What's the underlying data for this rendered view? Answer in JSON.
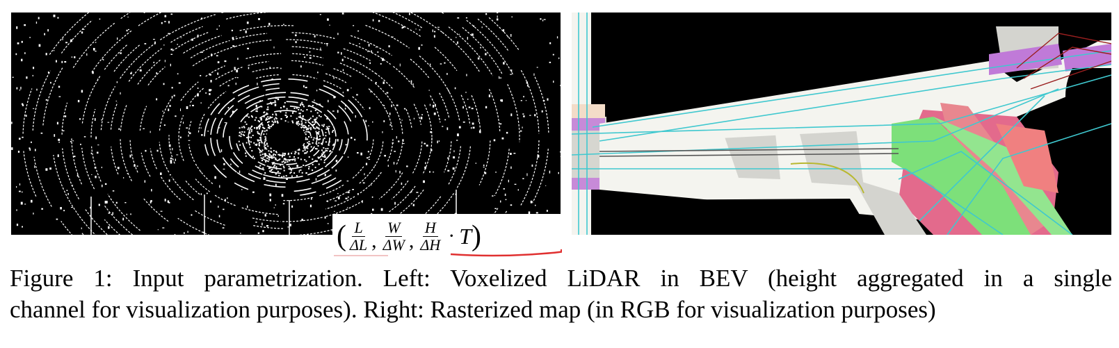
{
  "figure": {
    "lidar_panel": {
      "icon": "voxelized-lidar-bev-image"
    },
    "map_panel": {
      "icon": "rasterized-map-image"
    },
    "formula": {
      "open_paren": "(",
      "close_paren": ")",
      "frac1": {
        "num": "L",
        "den": "ΔL"
      },
      "frac2": {
        "num": "W",
        "den": "ΔW"
      },
      "frac3": {
        "num": "H",
        "den": "ΔH"
      },
      "comma": ",",
      "dot": "·",
      "tail": "T"
    },
    "caption": {
      "line1": "Figure 1:  Input parametrization.  Left:  Voxelized LiDAR in BEV (height aggregated in a single",
      "line2": "channel for visualization purposes). Right: Rasterized map (in RGB for visualization purposes)"
    }
  }
}
